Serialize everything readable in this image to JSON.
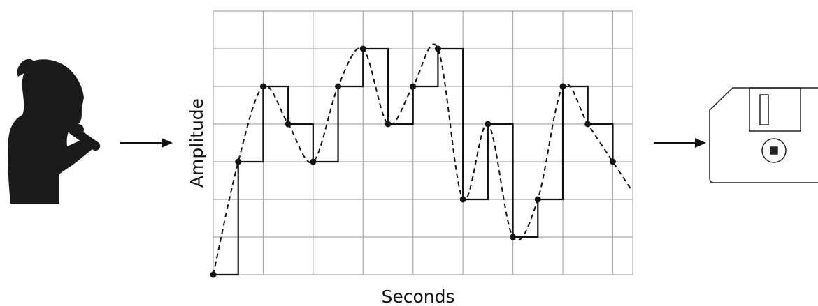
{
  "chart_data": {
    "type": "line",
    "x_label": "Seconds",
    "y_label": "Amplitude",
    "x": [
      0,
      0.5,
      1,
      1.5,
      2,
      2.5,
      3,
      3.5,
      4,
      4.5,
      5,
      5.5,
      6,
      6.5,
      7,
      7.5,
      8
    ],
    "values": [
      0,
      3,
      5,
      4,
      3,
      5,
      6,
      4,
      5,
      6,
      2,
      4,
      1,
      2,
      5,
      4,
      3
    ],
    "xlim": [
      0,
      8.4
    ],
    "ylim": [
      0,
      7
    ],
    "grid": true,
    "color": "#111111"
  }
}
